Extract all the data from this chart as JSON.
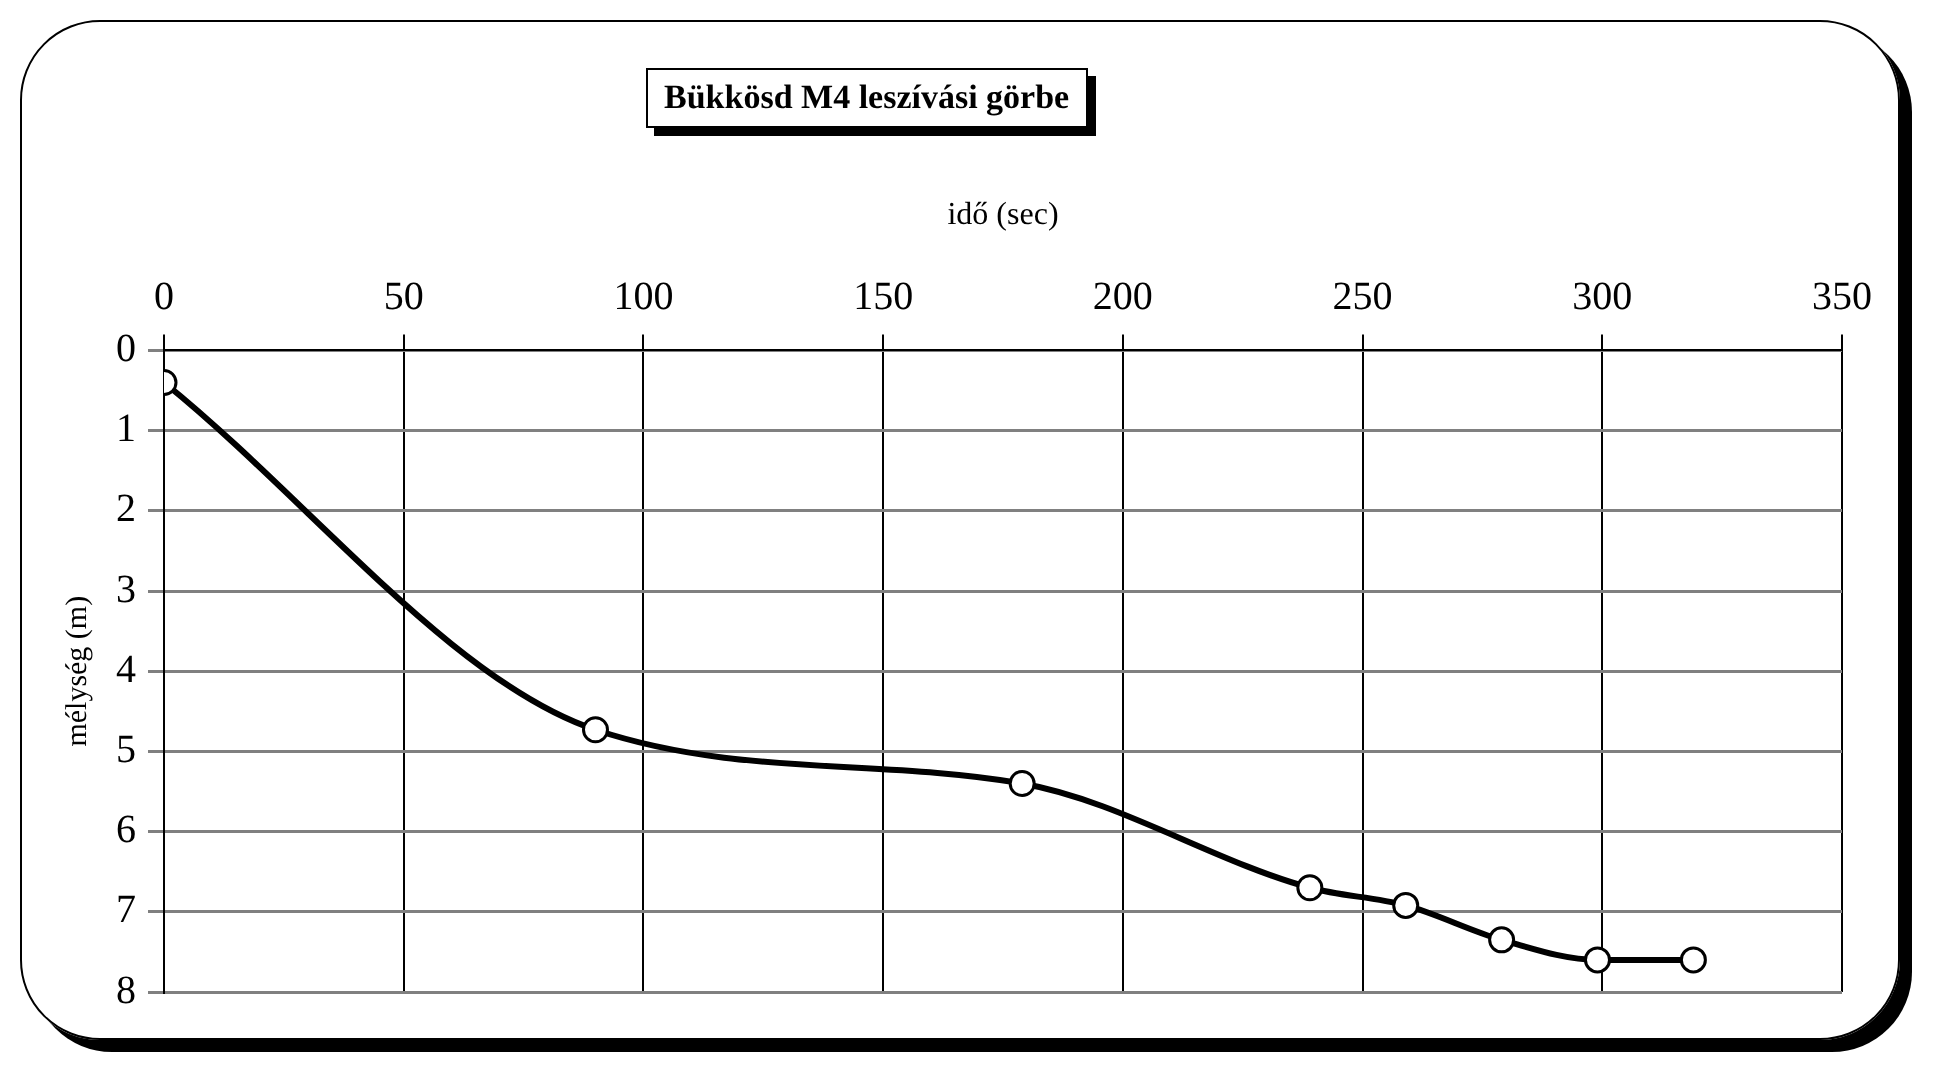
{
  "chart_data": {
    "type": "line",
    "title": "Bükkösd M4 leszívási görbe",
    "xlabel": "idő (sec)",
    "ylabel": "mélység (m)",
    "xlim": [
      0,
      350
    ],
    "xticks": [
      0,
      50,
      100,
      150,
      200,
      250,
      300,
      350
    ],
    "ylim": [
      8,
      0
    ],
    "yticks": [
      0,
      1,
      2,
      3,
      4,
      5,
      6,
      7,
      8
    ],
    "grid": true,
    "marker": "circle",
    "line_style": "solid",
    "series": [
      {
        "color": "#000000",
        "x": [
          0,
          90,
          179,
          239,
          259,
          279,
          299,
          319
        ],
        "values": [
          0.4,
          4.73,
          5.4,
          6.7,
          6.92,
          7.35,
          7.6,
          7.6
        ]
      }
    ]
  }
}
